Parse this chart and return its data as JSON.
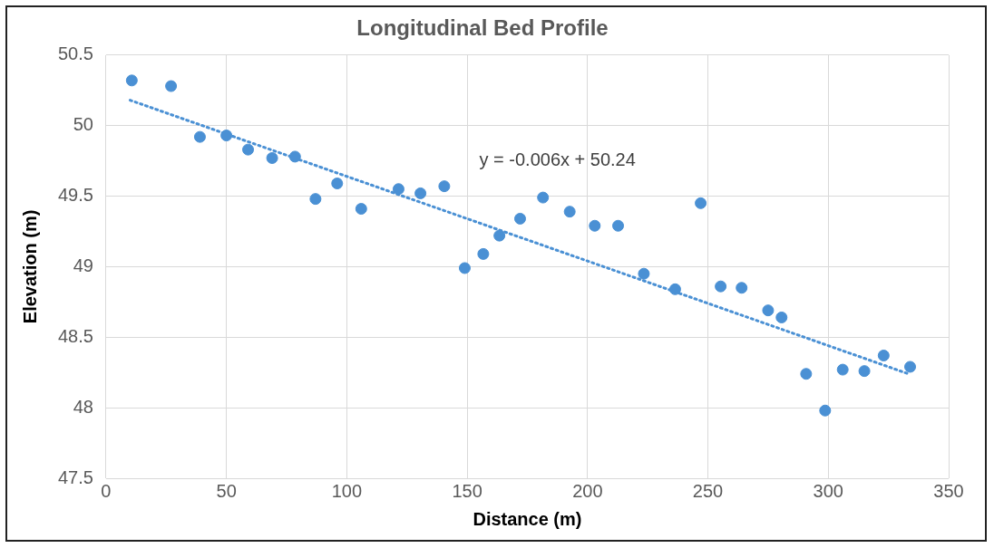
{
  "chart_data": {
    "type": "scatter",
    "title": "Longitudinal Bed Profile",
    "xlabel": "Distance (m)",
    "ylabel": "Elevation (m)",
    "series": [
      {
        "color": "#4a90d4",
        "x": [
          10.7,
          27,
          39,
          50,
          59,
          69,
          78.5,
          87,
          96,
          106,
          121.5,
          130.6,
          140.5,
          149,
          156.7,
          163.4,
          172,
          181.5,
          192.6,
          203,
          212.7,
          223.4,
          236.4,
          247,
          255.3,
          264,
          275,
          280.6,
          290.8,
          298.7,
          306,
          315,
          323,
          334
        ],
        "values": [
          50.32,
          50.28,
          49.92,
          49.93,
          49.83,
          49.77,
          49.78,
          49.48,
          49.59,
          49.41,
          49.55,
          49.52,
          49.57,
          48.99,
          49.09,
          49.22,
          49.34,
          49.49,
          49.39,
          49.29,
          49.29,
          48.95,
          48.84,
          49.45,
          48.86,
          48.85,
          48.69,
          48.64,
          48.24,
          47.98,
          48.27,
          48.26,
          48.37,
          48.29
        ],
        "marker": "circle"
      },
      {
        "type": "line",
        "color": "#4a90d4",
        "x": [
          10,
          334
        ],
        "values": [
          50.18,
          48.236
        ],
        "line_style": "dotted",
        "marker": "none"
      }
    ],
    "annotations": [
      "y = -0.006x + 50.24"
    ],
    "xlim": [
      0,
      350
    ],
    "xticks": [
      0,
      50,
      100,
      150,
      200,
      250,
      300,
      350
    ],
    "ylim": [
      47.5,
      50.5
    ],
    "yticks": [
      47.5,
      48,
      48.5,
      49,
      49.5,
      50,
      50.5
    ],
    "grid": true,
    "legend": false
  }
}
